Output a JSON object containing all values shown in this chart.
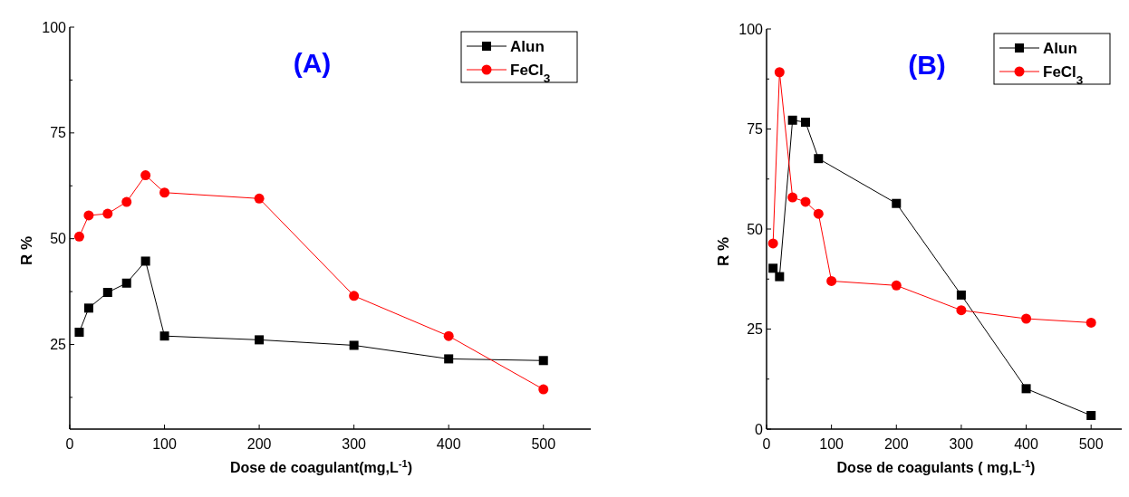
{
  "chart_data": [
    {
      "type": "line",
      "title": "(A)",
      "xlabel": "Dose de coagulant(mg,L$^{-1}$)",
      "ylabel": "R %",
      "xlim": [
        0,
        550
      ],
      "xticks": [
        0,
        100,
        200,
        300,
        400,
        500
      ],
      "ylim": [
        5,
        100
      ],
      "yticks": [
        {
          "value": 12.5,
          "label": null
        },
        25,
        {
          "value": 37.5,
          "label": null
        },
        50,
        {
          "value": 62.5,
          "label": null
        },
        75,
        {
          "value": 87.5,
          "label": null
        },
        100
      ],
      "legend": "top right",
      "grid": false,
      "line_style": "solid",
      "series": [
        {
          "name": "Alun",
          "color": "#000000",
          "marker": "square",
          "x": [
            10,
            20,
            40,
            60,
            80,
            100,
            200,
            300,
            400,
            500
          ],
          "values": [
            27.9,
            33.6,
            37.3,
            39.5,
            44.7,
            27.0,
            26.1,
            24.8,
            21.6,
            21.2
          ]
        },
        {
          "name": "FeCl$_{3}$",
          "color": "#ff0000",
          "marker": "circle",
          "x": [
            10,
            20,
            40,
            60,
            80,
            100,
            200,
            300,
            400,
            500
          ],
          "values": [
            50.5,
            55.5,
            55.9,
            58.7,
            65.0,
            60.9,
            59.5,
            36.5,
            27.0,
            14.4
          ]
        }
      ]
    },
    {
      "type": "line",
      "title": "(B)",
      "xlabel": "Dose de coagulants ( mg,L$^{-1}$)",
      "ylabel": "R %",
      "xlim": [
        0,
        550
      ],
      "xticks": [
        0,
        100,
        200,
        300,
        400,
        500
      ],
      "ylim": [
        0,
        100
      ],
      "yticks": [
        0,
        {
          "value": 12.5,
          "label": null
        },
        25,
        {
          "value": 37.5,
          "label": null
        },
        50,
        {
          "value": 62.5,
          "label": null
        },
        75,
        {
          "value": 87.5,
          "label": null
        },
        100
      ],
      "legend": "top right",
      "grid": false,
      "line_style": "solid",
      "series": [
        {
          "name": "Alun",
          "color": "#000000",
          "marker": "square",
          "x": [
            10,
            20,
            40,
            60,
            80,
            200,
            300,
            400,
            500
          ],
          "values": [
            40.2,
            38.1,
            77.2,
            76.7,
            67.6,
            56.4,
            33.5,
            10.1,
            3.4
          ]
        },
        {
          "name": "FeCl$_{3}$",
          "color": "#ff0000",
          "marker": "circle",
          "x": [
            10,
            20,
            40,
            60,
            80,
            100,
            200,
            300,
            400,
            500
          ],
          "values": [
            46.4,
            89.2,
            57.9,
            56.8,
            53.8,
            37.0,
            35.9,
            29.7,
            27.6,
            26.6
          ]
        }
      ]
    }
  ]
}
